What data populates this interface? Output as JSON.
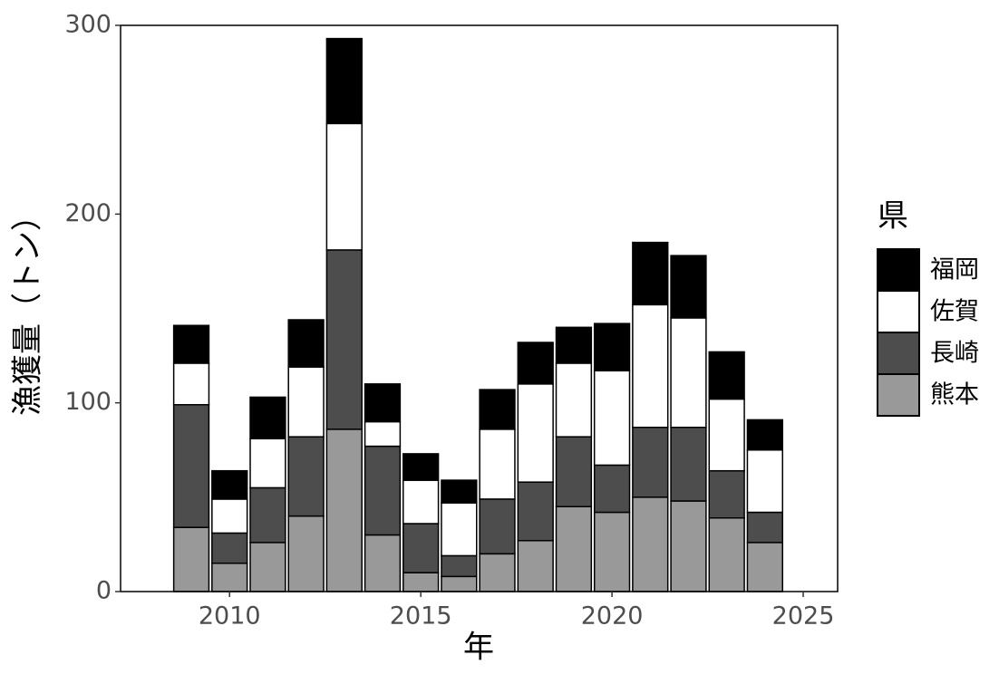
{
  "chart_data": {
    "type": "stacked-bar",
    "x_label": "年",
    "y_label": "漁獲量（トン）",
    "x": [
      2009,
      2010,
      2011,
      2012,
      2013,
      2014,
      2015,
      2016,
      2017,
      2018,
      2019,
      2020,
      2021,
      2022,
      2023,
      2024
    ],
    "series": [
      {
        "name": "熊本",
        "color": "#999999",
        "values": [
          34,
          15,
          26,
          40,
          86,
          30,
          10,
          8,
          20,
          27,
          45,
          42,
          50,
          48,
          39,
          26
        ]
      },
      {
        "name": "長崎",
        "color": "#4d4d4d",
        "values": [
          65,
          16,
          29,
          42,
          95,
          47,
          26,
          11,
          29,
          31,
          37,
          25,
          37,
          39,
          25,
          16
        ]
      },
      {
        "name": "佐賀",
        "color": "#ffffff",
        "values": [
          22,
          18,
          26,
          37,
          67,
          13,
          23,
          28,
          37,
          52,
          39,
          50,
          65,
          58,
          38,
          33
        ]
      },
      {
        "name": "福岡",
        "color": "#000000",
        "values": [
          20,
          15,
          22,
          25,
          45,
          20,
          14,
          12,
          21,
          22,
          19,
          25,
          33,
          33,
          25,
          16
        ]
      }
    ],
    "legend_title": "県",
    "legend_position": "right",
    "xlim": [
      2007.15,
      2025.9
    ],
    "xticks": [
      2010,
      2015,
      2020,
      2025
    ],
    "ylim": [
      0,
      300
    ],
    "yticks": [
      0,
      100,
      200,
      300
    ],
    "grid": false
  }
}
